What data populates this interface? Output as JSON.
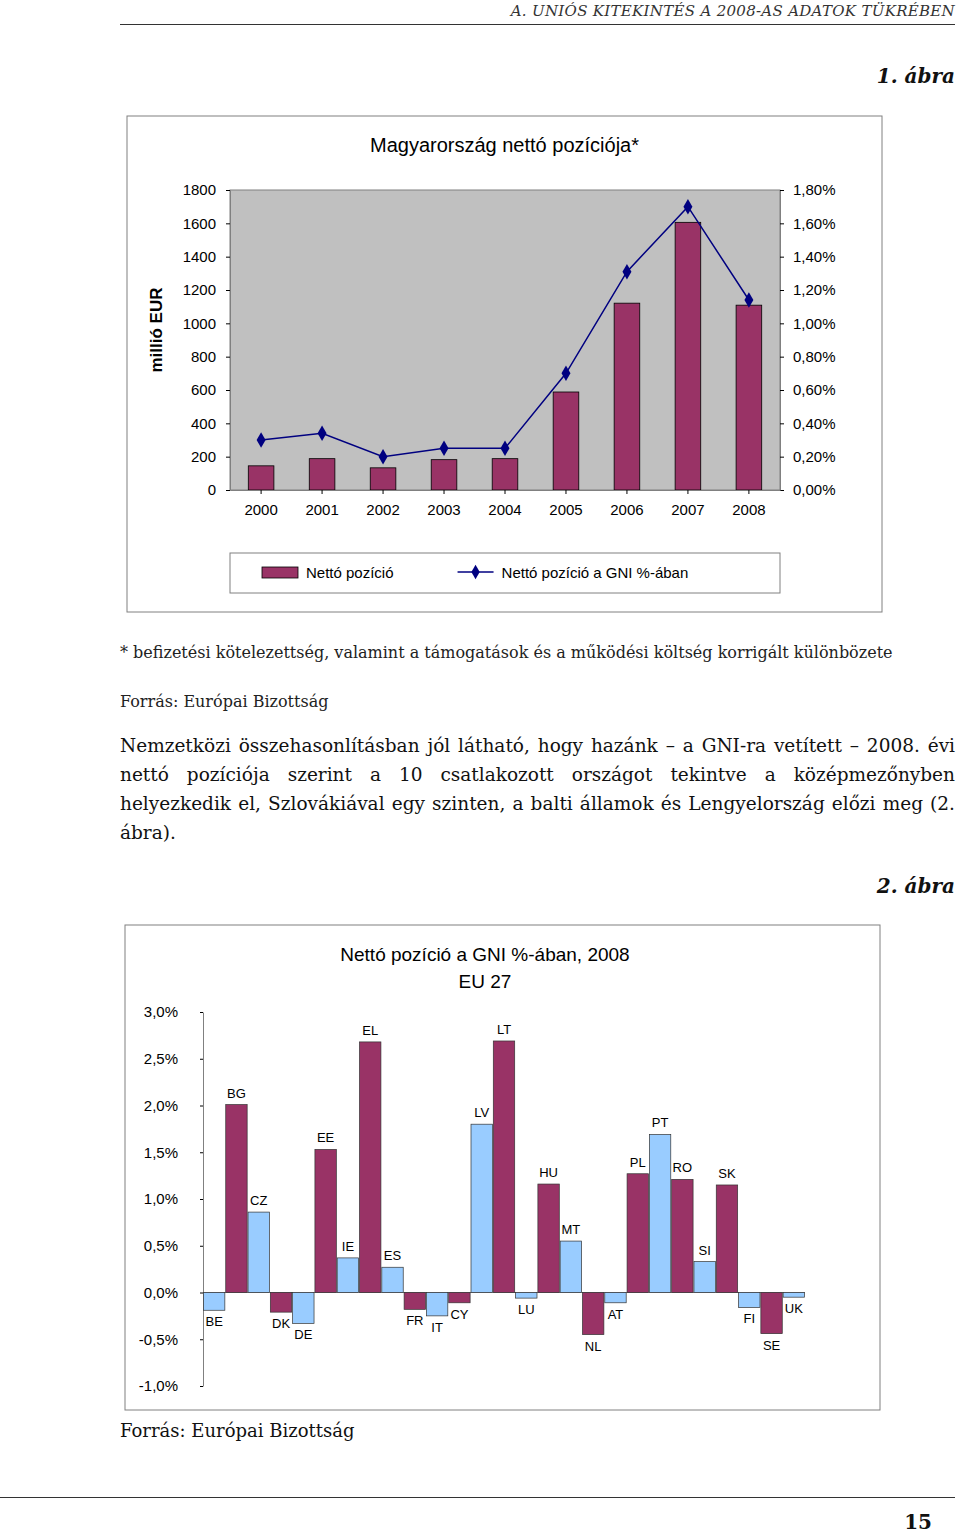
{
  "document": {
    "header": "A. UNIÓS KITEKINTÉS A 2008-AS ADATOK TÜKRÉBEN",
    "figure_labels": [
      "1. ábra",
      "2. ábra"
    ],
    "footnote": "* befizetési kötelezettség, valamint a támogatások és a működési költség korrigált különbözete",
    "sources": [
      "Forrás: Európai Bizottság",
      "Forrás: Európai Bizottság"
    ],
    "paragraph": "Nemzetközi összehasonlításban jól látható, hogy hazánk – a GNI-ra vetített – 2008. évi nettó pozíciója szerint a 10 csatlakozott országot tekintve a középmezőnyben helyezkedik el, Szlovákiával egy szinten, a balti államok és Lengyelország előzi meg (2. ábra).",
    "page_number": "15"
  },
  "chart_data": [
    {
      "type": "bar",
      "title": "Magyarország nettó pozíciója*",
      "ylabel": "millió EUR",
      "categories": [
        "2000",
        "2001",
        "2002",
        "2003",
        "2004",
        "2005",
        "2006",
        "2007",
        "2008"
      ],
      "series": [
        {
          "name": "Nettó pozíció",
          "type": "bar",
          "color": "#993366",
          "values": [
            145,
            188,
            133,
            182,
            188,
            588,
            1121,
            1606,
            1109
          ]
        },
        {
          "name": "Nettó pozíció a GNI %-ában",
          "type": "line",
          "color": "#000080",
          "marker": "diamond",
          "axis": "y2",
          "values": [
            0.3,
            0.34,
            0.2,
            0.25,
            0.25,
            0.7,
            1.31,
            1.7,
            1.14
          ]
        }
      ],
      "ylim": [
        0,
        1800
      ],
      "yticks": [
        0,
        200,
        400,
        600,
        800,
        1000,
        1200,
        1400,
        1600,
        1800
      ],
      "y2lim": [
        0,
        1.8
      ],
      "y2ticks": [
        {
          "value": 0,
          "label": "0,00%"
        },
        {
          "value": 0.2,
          "label": "0,20%"
        },
        {
          "value": 0.4,
          "label": "0,40%"
        },
        {
          "value": 0.6,
          "label": "0,60%"
        },
        {
          "value": 0.8,
          "label": "0,80%"
        },
        {
          "value": 1.0,
          "label": "1,00%"
        },
        {
          "value": 1.2,
          "label": "1,20%"
        },
        {
          "value": 1.4,
          "label": "1,40%"
        },
        {
          "value": 1.6,
          "label": "1,60%"
        },
        {
          "value": 1.8,
          "label": "1,80%"
        }
      ],
      "legend": "bottom"
    },
    {
      "type": "bar",
      "title": "Nettó pozíció a GNI %-ában, 2008",
      "subtitle": "EU 27",
      "categories": [
        "BE",
        "BG",
        "CZ",
        "DK",
        "DE",
        "EE",
        "IE",
        "EL",
        "ES",
        "FR",
        "IT",
        "CY",
        "LV",
        "LT",
        "LU",
        "HU",
        "MT",
        "NL",
        "AT",
        "PL",
        "PT",
        "RO",
        "SI",
        "SK",
        "FI",
        "SE",
        "UK"
      ],
      "values": [
        -0.19,
        2.01,
        0.86,
        -0.21,
        -0.33,
        1.53,
        0.37,
        2.68,
        0.27,
        -0.18,
        -0.25,
        -0.11,
        1.8,
        2.69,
        -0.06,
        1.16,
        0.55,
        -0.45,
        -0.11,
        1.27,
        1.69,
        1.21,
        0.33,
        1.15,
        -0.16,
        -0.44,
        -0.05
      ],
      "colors": [
        "#99ccff",
        "#993366",
        "#99ccff",
        "#993366",
        "#99ccff",
        "#993366",
        "#99ccff",
        "#993366",
        "#99ccff",
        "#993366",
        "#99ccff",
        "#993366",
        "#99ccff",
        "#993366",
        "#99ccff",
        "#993366",
        "#99ccff",
        "#993366",
        "#99ccff",
        "#993366",
        "#99ccff",
        "#993366",
        "#99ccff",
        "#993366",
        "#99ccff",
        "#993366",
        "#99ccff"
      ],
      "ylim": [
        -1,
        3
      ],
      "yticks": [
        {
          "value": -1,
          "label": "-1,0%"
        },
        {
          "value": -0.5,
          "label": "-0,5%"
        },
        {
          "value": 0,
          "label": "0,0%"
        },
        {
          "value": 0.5,
          "label": "0,5%"
        },
        {
          "value": 1,
          "label": "1,0%"
        },
        {
          "value": 1.5,
          "label": "1,5%"
        },
        {
          "value": 2,
          "label": "2,0%"
        },
        {
          "value": 2.5,
          "label": "2,5%"
        },
        {
          "value": 3,
          "label": "3,0%"
        }
      ],
      "tick_labels": "y"
    }
  ]
}
